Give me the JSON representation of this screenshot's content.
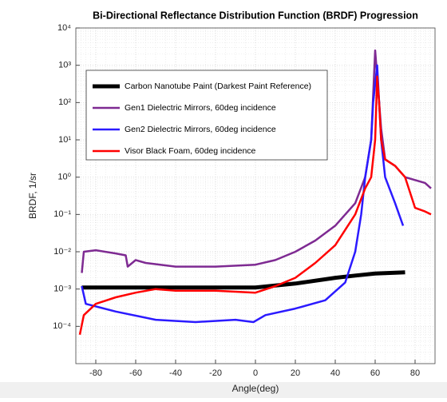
{
  "chart_data": {
    "type": "line",
    "title": "Bi-Directional Reflectance Distribution Function (BRDF) Progression",
    "xlabel": "Angle(deg)",
    "ylabel": "BRDF, 1/sr",
    "xlim": [
      -90,
      90
    ],
    "xticks": [
      -80,
      -60,
      -40,
      -20,
      0,
      20,
      40,
      60,
      80
    ],
    "ylim": [
      1e-05,
      10000
    ],
    "log_y": true,
    "yticks": [
      {
        "value": 0.0001,
        "label": "10⁻⁴"
      },
      {
        "value": 0.001,
        "label": "10⁻³"
      },
      {
        "value": 0.01,
        "label": "10⁻²"
      },
      {
        "value": 0.1,
        "label": "10⁻¹"
      },
      {
        "value": 1,
        "label": "10⁰"
      },
      {
        "value": 10,
        "label": "10¹"
      },
      {
        "value": 100,
        "label": "10²"
      },
      {
        "value": 1000,
        "label": "10³"
      },
      {
        "value": 10000,
        "label": "10⁴"
      }
    ],
    "grid": true,
    "legend": "upper left",
    "series": [
      {
        "name": "Carbon Nanotube Paint (Darkest Paint Reference)",
        "color": "#000000",
        "width": 5,
        "x": [
          -87,
          -40,
          0,
          20,
          40,
          50,
          60,
          75
        ],
        "values": [
          0.0011,
          0.0011,
          0.0011,
          0.0014,
          0.002,
          0.0023,
          0.0026,
          0.0028
        ]
      },
      {
        "name": "Gen1 Dielectric Mirrors, 60deg incidence",
        "color": "#7e2a92",
        "width": 2.5,
        "x": [
          -87,
          -86,
          -80,
          -70,
          -65,
          -64,
          -60,
          -55,
          -40,
          -20,
          0,
          10,
          20,
          30,
          40,
          50,
          55,
          58,
          60,
          62,
          63,
          65,
          70,
          75,
          85,
          88
        ],
        "values": [
          0.0027,
          0.01,
          0.011,
          0.009,
          0.008,
          0.004,
          0.006,
          0.005,
          0.004,
          0.004,
          0.0045,
          0.006,
          0.01,
          0.02,
          0.05,
          0.2,
          1,
          10,
          2500,
          100,
          20,
          3,
          2,
          1,
          0.7,
          0.5
        ]
      },
      {
        "name": "Gen2 Dielectric Mirrors, 60deg incidence",
        "color": "#2b1aff",
        "width": 2.5,
        "x": [
          -87,
          -85,
          -70,
          -50,
          -30,
          -10,
          -1,
          5,
          20,
          35,
          45,
          50,
          53,
          55,
          58,
          59,
          61,
          63,
          65,
          70,
          74
        ],
        "values": [
          0.0012,
          0.0004,
          0.00025,
          0.00015,
          0.00013,
          0.00015,
          0.00013,
          0.0002,
          0.0003,
          0.0005,
          0.0015,
          0.01,
          0.1,
          1,
          10,
          100,
          1000,
          10,
          1,
          0.2,
          0.05
        ]
      },
      {
        "name": "Visor Black Foam, 60deg incidence",
        "color": "#ff0000",
        "width": 2.5,
        "x": [
          -88,
          -86,
          -80,
          -70,
          -60,
          -50,
          -40,
          -20,
          0,
          10,
          20,
          30,
          40,
          50,
          55,
          58,
          60,
          61,
          62,
          63,
          65,
          70,
          75,
          80,
          85,
          88
        ],
        "values": [
          6e-05,
          0.0002,
          0.0004,
          0.0006,
          0.0008,
          0.001,
          0.0009,
          0.0009,
          0.0008,
          0.0012,
          0.002,
          0.005,
          0.015,
          0.1,
          0.5,
          1,
          10,
          500,
          100,
          10,
          3,
          2,
          1,
          0.15,
          0.12,
          0.1
        ]
      }
    ]
  }
}
